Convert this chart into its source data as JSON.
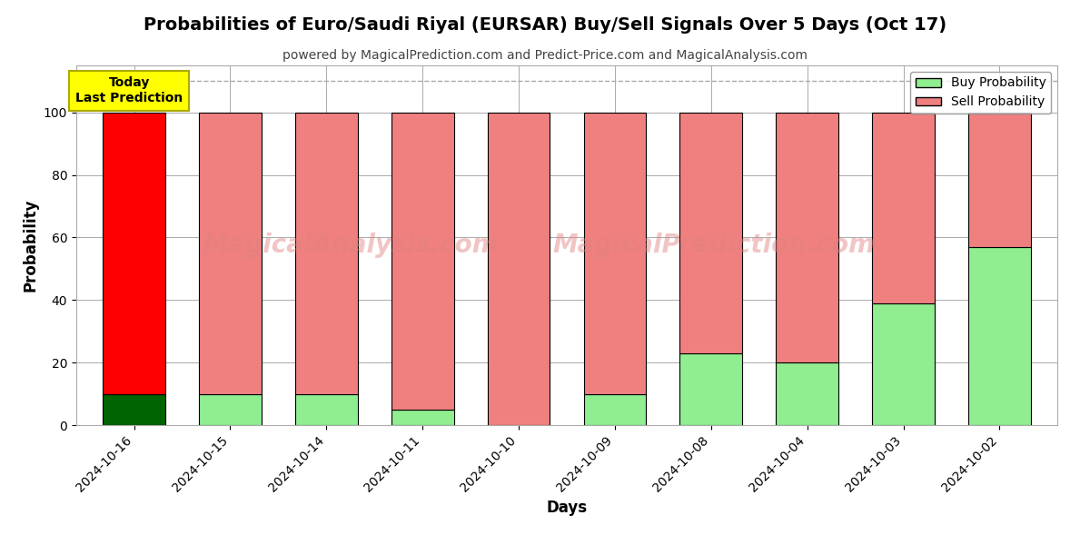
{
  "title": "Probabilities of Euro/Saudi Riyal (EURSAR) Buy/Sell Signals Over 5 Days (Oct 17)",
  "subtitle": "powered by MagicalPrediction.com and Predict-Price.com and MagicalAnalysis.com",
  "xlabel": "Days",
  "ylabel": "Probability",
  "categories": [
    "2024-10-16",
    "2024-10-15",
    "2024-10-14",
    "2024-10-11",
    "2024-10-10",
    "2024-10-09",
    "2024-10-08",
    "2024-10-04",
    "2024-10-03",
    "2024-10-02"
  ],
  "buy_values": [
    10,
    10,
    10,
    5,
    0,
    10,
    23,
    20,
    39,
    57
  ],
  "sell_values": [
    90,
    90,
    90,
    95,
    100,
    90,
    77,
    80,
    61,
    43
  ],
  "today_bar_index": 0,
  "buy_color_today": "#006400",
  "sell_color_today": "#ff0000",
  "buy_color_normal": "#90ee90",
  "sell_color_normal": "#f08080",
  "bar_edge_color": "#000000",
  "bar_edge_width": 0.8,
  "ylim": [
    0,
    115
  ],
  "yticks": [
    0,
    20,
    40,
    60,
    80,
    100
  ],
  "dashed_line_y": 110,
  "today_box_text": "Today\nLast Prediction",
  "today_box_facecolor": "#ffff00",
  "today_box_edgecolor": "#aaaa00",
  "legend_buy_label": "Buy Probability",
  "legend_sell_label": "Sell Probability",
  "watermark_text1": "MagicalAnalysis.com",
  "watermark_text2": "MagicalPrediction.com",
  "watermark_color": "#e08080",
  "watermark_alpha": 0.45,
  "bg_color": "#ffffff",
  "grid_color": "#aaaaaa",
  "title_fontsize": 14,
  "subtitle_fontsize": 10,
  "axis_label_fontsize": 12,
  "tick_fontsize": 10
}
